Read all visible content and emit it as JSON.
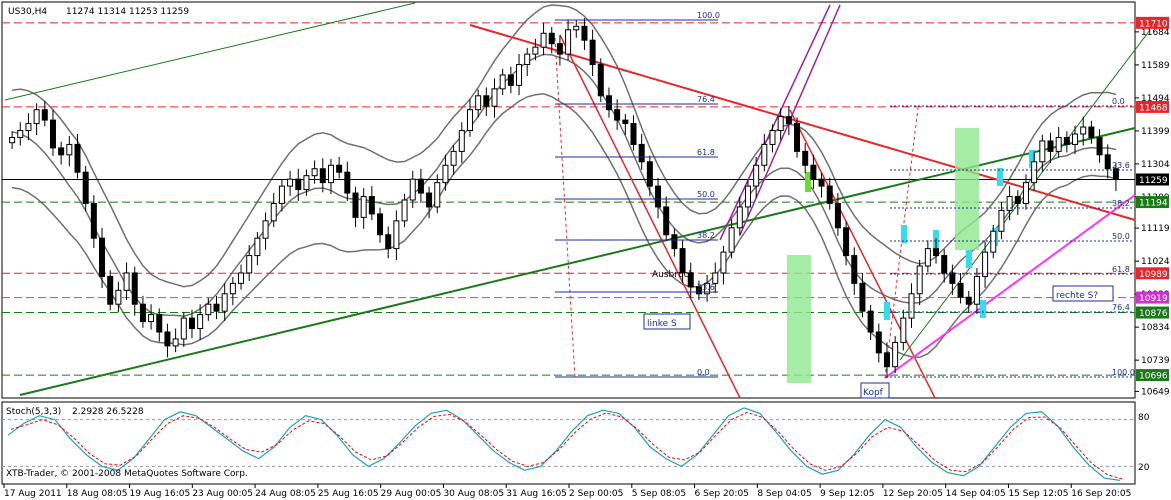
{
  "header": {
    "symbol": "US30,H4",
    "ohlc": "11274 11314 11253 11259"
  },
  "indicator": {
    "name": "Stoch(5,3,3)",
    "values": "2.2928 26.5228",
    "levels": [
      "80",
      "20"
    ],
    "main_color": "#1fa3b8",
    "signal_color": "#ff0000"
  },
  "copyright": "XTB-Trader, © 2001-2008 MetaQuotes Software Corp.",
  "annotations": {
    "ausbruch": "Ausbruch",
    "linke_s": "linke S",
    "kopf": "Kopf",
    "rechte_s": "rechte S?"
  },
  "fib_left": [
    "100.0",
    "76.4",
    "61.8",
    "50.0",
    "38.2",
    "23.6",
    "0.0"
  ],
  "fib_right": [
    "0.0",
    "23.6",
    "38.2",
    "50.0",
    "61.8",
    "76.4",
    "100.0"
  ],
  "price_tags": [
    {
      "text": "11710",
      "price": 11710,
      "bg": "#e8262a",
      "fg": "#ffffff"
    },
    {
      "text": "11468",
      "price": 11468,
      "bg": "#e8262a",
      "fg": "#ffffff"
    },
    {
      "text": "11259",
      "price": 11259,
      "bg": "#000000",
      "fg": "#ffffff"
    },
    {
      "text": "11194",
      "price": 11194,
      "bg": "#1a7a1a",
      "fg": "#ffffff"
    },
    {
      "text": "10989",
      "price": 10989,
      "bg": "#e8262a",
      "fg": "#ffffff"
    },
    {
      "text": "10919",
      "price": 10919,
      "bg": "#cc33cc",
      "fg": "#ffffff"
    },
    {
      "text": "10876",
      "price": 10876,
      "bg": "#1a7a1a",
      "fg": "#ffffff"
    },
    {
      "text": "10696",
      "price": 10696,
      "bg": "#1a7a1a",
      "fg": "#ffffff"
    }
  ],
  "chart_data": {
    "type": "candlestick",
    "y_ticks": [
      "11684",
      "11589",
      "11494",
      "11399",
      "11304",
      "11209",
      "11119",
      "11024",
      "10929",
      "10834",
      "10739",
      "10649"
    ],
    "ylim": [
      10630,
      11770
    ],
    "x_ticks": [
      "17 Aug 2011",
      "18 Aug 08:05",
      "19 Aug 16:05",
      "23 Aug 00:05",
      "24 Aug 08:05",
      "25 Aug 16:05",
      "29 Aug 00:05",
      "30 Aug 08:05",
      "31 Aug 16:05",
      "2 Sep 00:05",
      "5 Sep 08:05",
      "6 Sep 20:05",
      "8 Sep 04:05",
      "9 Sep 12:05",
      "12 Sep 20:05",
      "14 Sep 04:05",
      "15 Sep 12:05",
      "16 Sep 20:05"
    ],
    "candles_close": [
      11380,
      11400,
      11420,
      11460,
      11430,
      11350,
      11330,
      11360,
      11280,
      11190,
      11090,
      10980,
      10900,
      10940,
      10990,
      10900,
      10850,
      10870,
      10820,
      10780,
      10800,
      10860,
      10830,
      10870,
      10900,
      10880,
      10930,
      10960,
      10990,
      11040,
      11090,
      11140,
      11190,
      11240,
      11260,
      11230,
      11270,
      11290,
      11250,
      11300,
      11280,
      11220,
      11150,
      11210,
      11160,
      11100,
      11060,
      11140,
      11200,
      11260,
      11220,
      11180,
      11250,
      11300,
      11340,
      11400,
      11460,
      11500,
      11470,
      11520,
      11560,
      11530,
      11590,
      11620,
      11640,
      11680,
      11650,
      11620,
      11690,
      11700,
      11660,
      11590,
      11500,
      11460,
      11430,
      11420,
      11360,
      11310,
      11240,
      11180,
      11100,
      11060,
      10990,
      10950,
      10930,
      10960,
      10990,
      11050,
      11120,
      11180,
      11240,
      11300,
      11360,
      11400,
      11440,
      11420,
      11340,
      11300,
      11260,
      11240,
      11190,
      11120,
      11040,
      10960,
      10880,
      10820,
      10760,
      10720,
      10790,
      10860,
      10930,
      11010,
      11060,
      11040,
      10990,
      10960,
      10920,
      10900,
      10980,
      11050,
      11110,
      11170,
      11210,
      11190,
      11250,
      11310,
      11370,
      11340,
      11380,
      11360,
      11390,
      11410,
      11380,
      11330,
      11290,
      11259
    ],
    "stoch_main": [
      60,
      75,
      85,
      80,
      55,
      35,
      20,
      15,
      30,
      55,
      80,
      90,
      85,
      70,
      55,
      40,
      30,
      45,
      70,
      85,
      80,
      60,
      35,
      20,
      30,
      50,
      72,
      88,
      92,
      80,
      60,
      40,
      25,
      15,
      20,
      40,
      65,
      85,
      92,
      88,
      70,
      45,
      30,
      20,
      35,
      60,
      85,
      95,
      88,
      65,
      40,
      20,
      10,
      15,
      35,
      60,
      80,
      70,
      45,
      25,
      12,
      8,
      20,
      45,
      70,
      88,
      90,
      72,
      45,
      22,
      5,
      2
    ]
  }
}
